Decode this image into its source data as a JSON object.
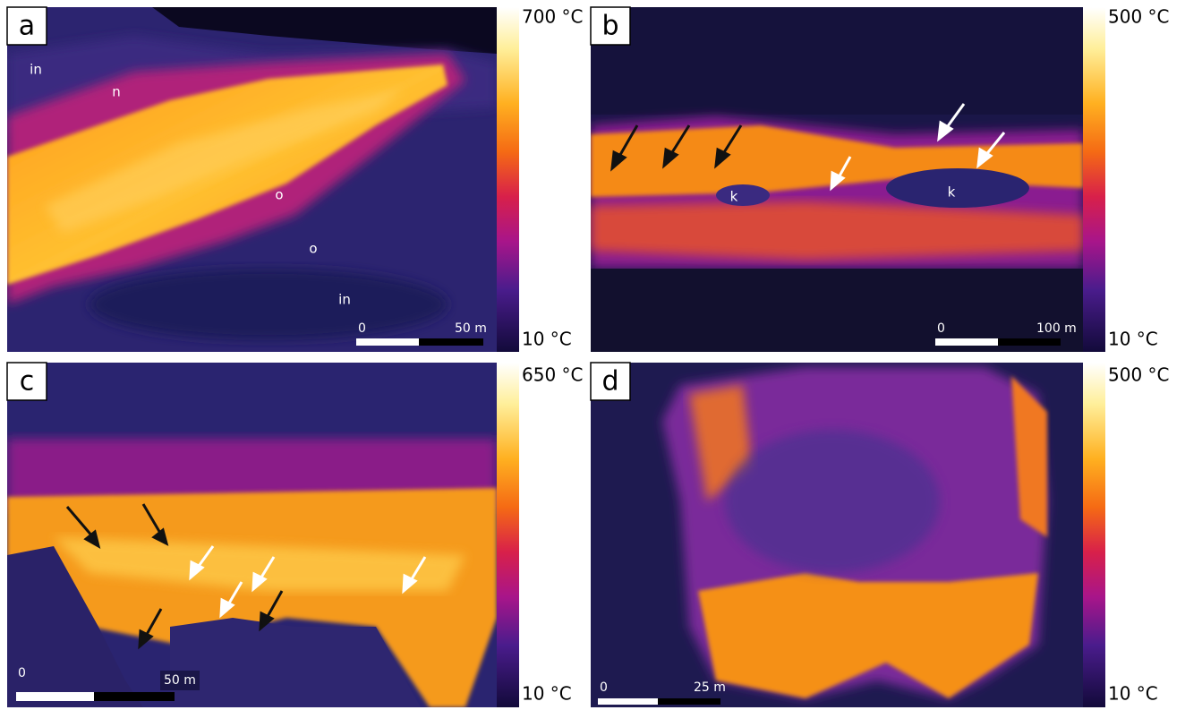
{
  "panels": [
    {
      "label": "a",
      "max_label": "700 °C",
      "min_label": "10 °C",
      "scale_labels": [
        "0",
        "50 m"
      ],
      "annotations": [
        "in",
        "n",
        "o",
        "o",
        "in"
      ]
    },
    {
      "label": "b",
      "max_label": "500 °C",
      "min_label": "10 °C",
      "scale_labels": [
        "0",
        "100 m"
      ],
      "annotations": [
        "k",
        "k"
      ]
    },
    {
      "label": "c",
      "max_label": "650 °C",
      "min_label": "10 °C",
      "scale_labels": [
        "0",
        "50 m"
      ],
      "annotations": []
    },
    {
      "label": "d",
      "max_label": "500 °C",
      "min_label": "10 °C",
      "scale_labels": [
        "0",
        "25 m"
      ],
      "annotations": []
    }
  ]
}
